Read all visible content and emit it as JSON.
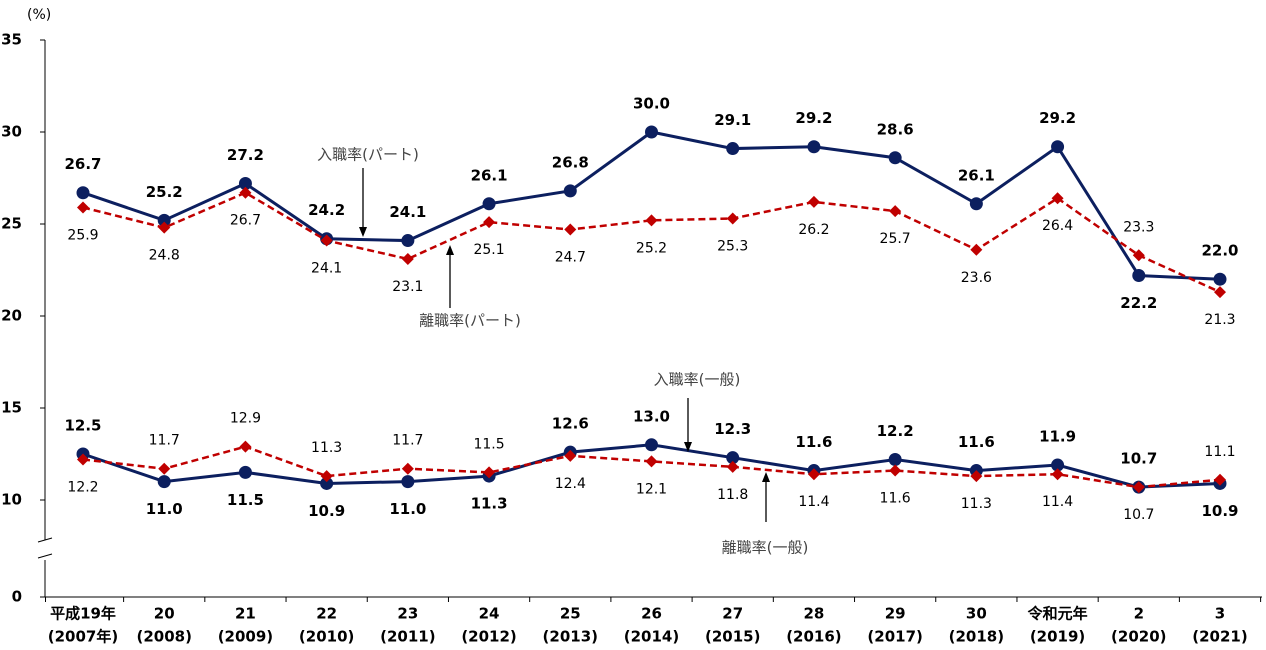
{
  "chart_data": {
    "type": "line",
    "unit": "(%)",
    "categories": [
      [
        "平成19年",
        "(2007年)"
      ],
      [
        "20",
        "(2008)"
      ],
      [
        "21",
        "(2009)"
      ],
      [
        "22",
        "(2010)"
      ],
      [
        "23",
        "(2011)"
      ],
      [
        "24",
        "(2012)"
      ],
      [
        "25",
        "(2013)"
      ],
      [
        "26",
        "(2014)"
      ],
      [
        "27",
        "(2015)"
      ],
      [
        "28",
        "(2016)"
      ],
      [
        "29",
        "(2017)"
      ],
      [
        "30",
        "(2018)"
      ],
      [
        "令和元年",
        "(2019)"
      ],
      [
        "2",
        "(2020)"
      ],
      [
        "3",
        "(2021)"
      ]
    ],
    "series": [
      {
        "name": "入職率(パート)",
        "color": "#0c1f5f",
        "dash": false,
        "marker": "circle",
        "values": [
          26.7,
          25.2,
          27.2,
          24.2,
          24.1,
          26.1,
          26.8,
          30.0,
          29.1,
          29.2,
          28.6,
          26.1,
          29.2,
          22.2,
          22.0
        ],
        "value_labels": [
          "26.7",
          "25.2",
          "27.2",
          "24.2",
          "24.1",
          "26.1",
          "26.8",
          "30.0",
          "29.1",
          "29.2",
          "28.6",
          "26.1",
          "29.2",
          "22.2",
          "22.0"
        ]
      },
      {
        "name": "離職率(パート)",
        "color": "#c00000",
        "dash": true,
        "marker": "diamond",
        "values": [
          25.9,
          24.8,
          26.7,
          24.1,
          23.1,
          25.1,
          24.7,
          25.2,
          25.3,
          26.2,
          25.7,
          23.6,
          26.4,
          23.3,
          21.3
        ],
        "value_labels": [
          "25.9",
          "24.8",
          "26.7",
          "24.1",
          "23.1",
          "25.1",
          "24.7",
          "25.2",
          "25.3",
          "26.2",
          "25.7",
          "23.6",
          "26.4",
          "23.3",
          "21.3"
        ]
      },
      {
        "name": "入職率(一般)",
        "color": "#0c1f5f",
        "dash": false,
        "marker": "circle",
        "values": [
          12.5,
          11.0,
          11.5,
          10.9,
          11.0,
          11.3,
          12.6,
          13.0,
          12.3,
          11.6,
          12.2,
          11.6,
          11.9,
          10.7,
          10.9
        ],
        "value_labels": [
          "12.5",
          "11.0",
          "11.5",
          "10.9",
          "11.0",
          "11.3",
          "12.6",
          "13.0",
          "12.3",
          "11.6",
          "12.2",
          "11.6",
          "11.9",
          "10.7",
          "10.9"
        ]
      },
      {
        "name": "離職率(一般)",
        "color": "#c00000",
        "dash": true,
        "marker": "diamond",
        "values": [
          12.2,
          11.7,
          12.9,
          11.3,
          11.7,
          11.5,
          12.4,
          12.1,
          11.8,
          11.4,
          11.6,
          11.3,
          11.4,
          10.7,
          11.1
        ],
        "value_labels": [
          "12.2",
          "11.7",
          "12.9",
          "11.3",
          "11.7",
          "11.5",
          "12.4",
          "12.1",
          "11.8",
          "11.4",
          "11.6",
          "11.3",
          "11.4",
          "10.7",
          "11.1"
        ]
      }
    ],
    "ylim": [
      0,
      35
    ],
    "yticks": [
      0,
      10,
      15,
      20,
      25,
      30,
      35
    ],
    "y_break": [
      0,
      10
    ],
    "grid": false
  }
}
